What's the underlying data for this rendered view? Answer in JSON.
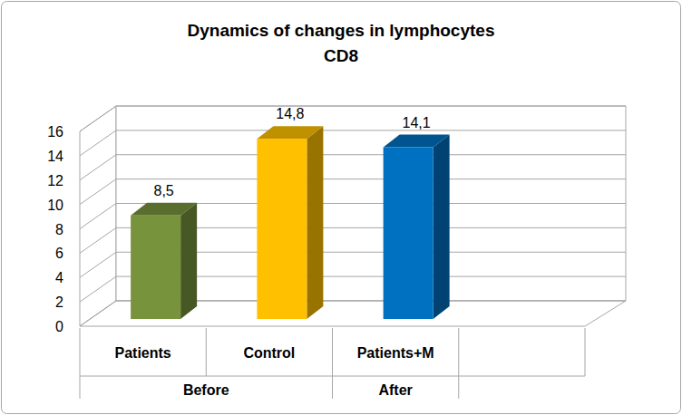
{
  "chart_data": {
    "type": "bar",
    "title": "Dynamics of changes in lymphocytes",
    "subtitle": "CD8",
    "categories": [
      "Patients",
      "Control",
      "Patients+M",
      null
    ],
    "category_groups": [
      {
        "label": "Before",
        "span": 2
      },
      {
        "label": "After",
        "span": 1
      }
    ],
    "values": [
      8.5,
      14.8,
      14.1,
      null
    ],
    "value_labels": [
      "8,5",
      "14,8",
      "14,1",
      null
    ],
    "colors": [
      "#77933c",
      "#ffc000",
      "#0070c0",
      "#0070c0"
    ],
    "ylim": [
      0,
      16
    ],
    "yticks": [
      0,
      2,
      4,
      6,
      8,
      10,
      12,
      14,
      16
    ],
    "grid": true,
    "data_labels": true
  }
}
